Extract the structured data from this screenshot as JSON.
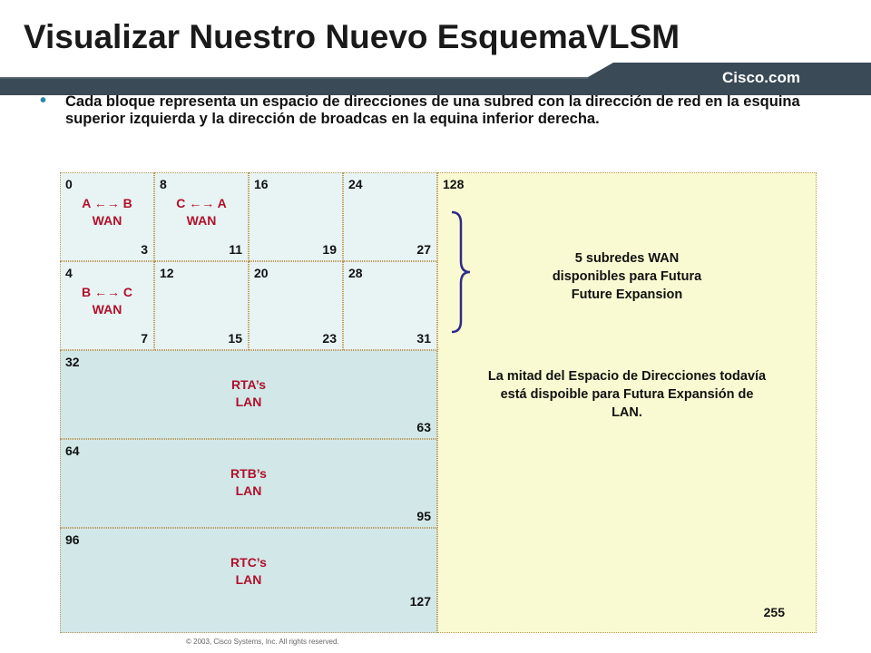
{
  "slide": {
    "title": "Visualizar Nuestro Nuevo EsquemaVLSM",
    "brand": "Cisco.com",
    "bullet": "Cada bloque representa un espacio de direcciones de una subred con la dirección de red en la esquina superior izquierda y la dirección de broadcas en la equina inferior derecha.",
    "footer": "© 2003, Cisco Systems, Inc. All rights reserved.",
    "colors": {
      "bar": "#3a4a57",
      "accent": "#2a8aa6",
      "label_red": "#b0102a",
      "small_block": "#e8f3f3",
      "lan_block": "#d2e7e8",
      "free_block": "#fafad2"
    }
  },
  "blocks": {
    "b0": {
      "start": "0",
      "end": "3",
      "label1": "A ←→ B",
      "label2": "WAN"
    },
    "b8": {
      "start": "8",
      "end": "11",
      "label1": "C ←→ A",
      "label2": "WAN"
    },
    "b16": {
      "start": "16",
      "end": "19"
    },
    "b24": {
      "start": "24",
      "end": "27"
    },
    "b4": {
      "start": "4",
      "end": "7",
      "label1": "B ←→ C",
      "label2": "WAN"
    },
    "b12": {
      "start": "12",
      "end": "15"
    },
    "b20": {
      "start": "20",
      "end": "23"
    },
    "b28": {
      "start": "28",
      "end": "31"
    },
    "b32": {
      "start": "32",
      "end": "63",
      "label1": "RTA’s",
      "label2": "LAN"
    },
    "b64": {
      "start": "64",
      "end": "95",
      "label1": "RTB’s",
      "label2": "LAN"
    },
    "b96": {
      "start": "96",
      "end": "127",
      "label1": "RTC’s",
      "label2": "LAN"
    },
    "b128": {
      "start": "128",
      "end": "255",
      "wan_note_1": "5 subredes WAN",
      "wan_note_2": "disponibles para Futura",
      "wan_note_3": "Future Expansion",
      "lan_note_1": "La mitad del Espacio de Direcciones todavía",
      "lan_note_2": "está dispoible para Futura Expansión de",
      "lan_note_3": "LAN."
    }
  }
}
